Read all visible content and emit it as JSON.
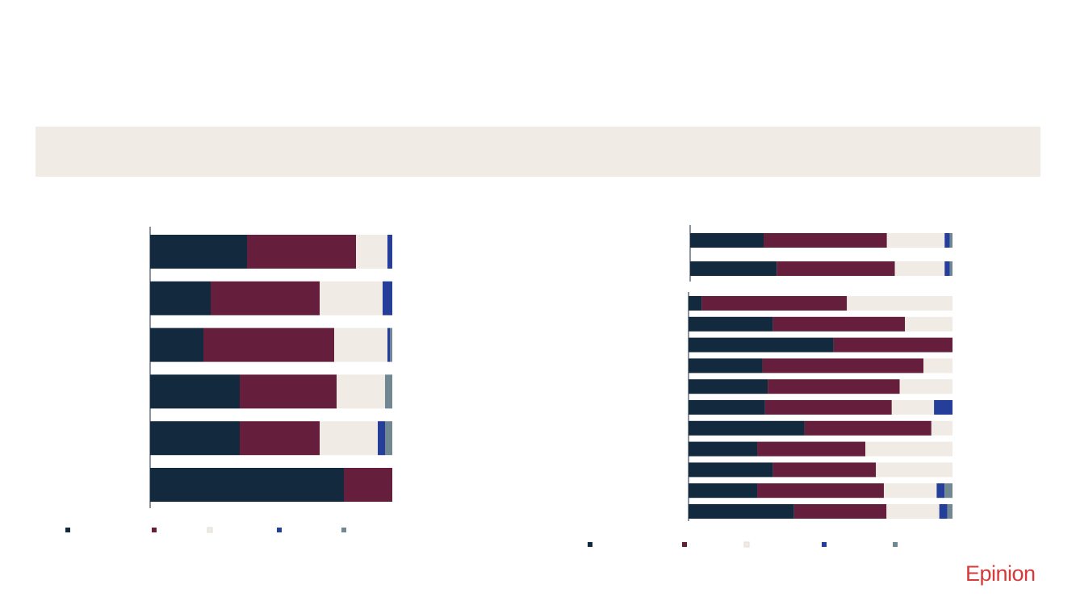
{
  "banner": {
    "text": ""
  },
  "brand": {
    "logo_text": "Epinion"
  },
  "colors": {
    "navy": "#13293d",
    "maroon": "#651e3b",
    "beige": "#f0ebe4",
    "blue": "#253e9a",
    "slate": "#718893",
    "axis": "#13293d"
  },
  "chart_data": [
    {
      "type": "bar",
      "orientation": "horizontal",
      "stacked": true,
      "percent": true,
      "categories": [
        "",
        "",
        "",
        "",
        "",
        ""
      ],
      "series": [
        {
          "color": "navy",
          "values": [
            40,
            25,
            22,
            37,
            37,
            80
          ]
        },
        {
          "color": "maroon",
          "values": [
            45,
            45,
            54,
            40,
            33,
            20
          ]
        },
        {
          "color": "beige",
          "values": [
            13,
            26,
            22,
            20,
            24,
            0
          ]
        },
        {
          "color": "blue",
          "values": [
            2,
            4,
            1,
            0,
            3,
            0
          ]
        },
        {
          "color": "slate",
          "values": [
            0,
            0,
            1,
            3,
            3,
            0
          ]
        }
      ],
      "xlim": [
        0,
        100
      ],
      "legend_position": "bottom"
    },
    {
      "type": "bar",
      "orientation": "horizontal",
      "stacked": true,
      "percent": true,
      "groups": [
        {
          "categories": [
            "",
            ""
          ],
          "series": [
            {
              "color": "navy",
              "values": [
                28,
                33
              ]
            },
            {
              "color": "maroon",
              "values": [
                47,
                45
              ]
            },
            {
              "color": "beige",
              "values": [
                22,
                19
              ]
            },
            {
              "color": "blue",
              "values": [
                2,
                2
              ]
            },
            {
              "color": "slate",
              "values": [
                1,
                1
              ]
            }
          ]
        },
        {
          "categories": [
            "",
            "",
            "",
            "",
            "",
            "",
            "",
            "",
            "",
            "",
            ""
          ],
          "series": [
            {
              "color": "navy",
              "values": [
                5,
                32,
                55,
                28,
                30,
                29,
                44,
                26,
                32,
                26,
                40
              ]
            },
            {
              "color": "maroon",
              "values": [
                55,
                50,
                45,
                61,
                50,
                48,
                48,
                41,
                39,
                48,
                35
              ]
            },
            {
              "color": "beige",
              "values": [
                40,
                18,
                0,
                11,
                20,
                16,
                8,
                33,
                29,
                20,
                20
              ]
            },
            {
              "color": "blue",
              "values": [
                0,
                0,
                0,
                0,
                0,
                7,
                0,
                0,
                0,
                3,
                3
              ]
            },
            {
              "color": "slate",
              "values": [
                0,
                0,
                0,
                0,
                0,
                0,
                0,
                0,
                0,
                3,
                2
              ]
            }
          ]
        }
      ],
      "xlim": [
        0,
        100
      ],
      "legend_position": "bottom"
    }
  ]
}
